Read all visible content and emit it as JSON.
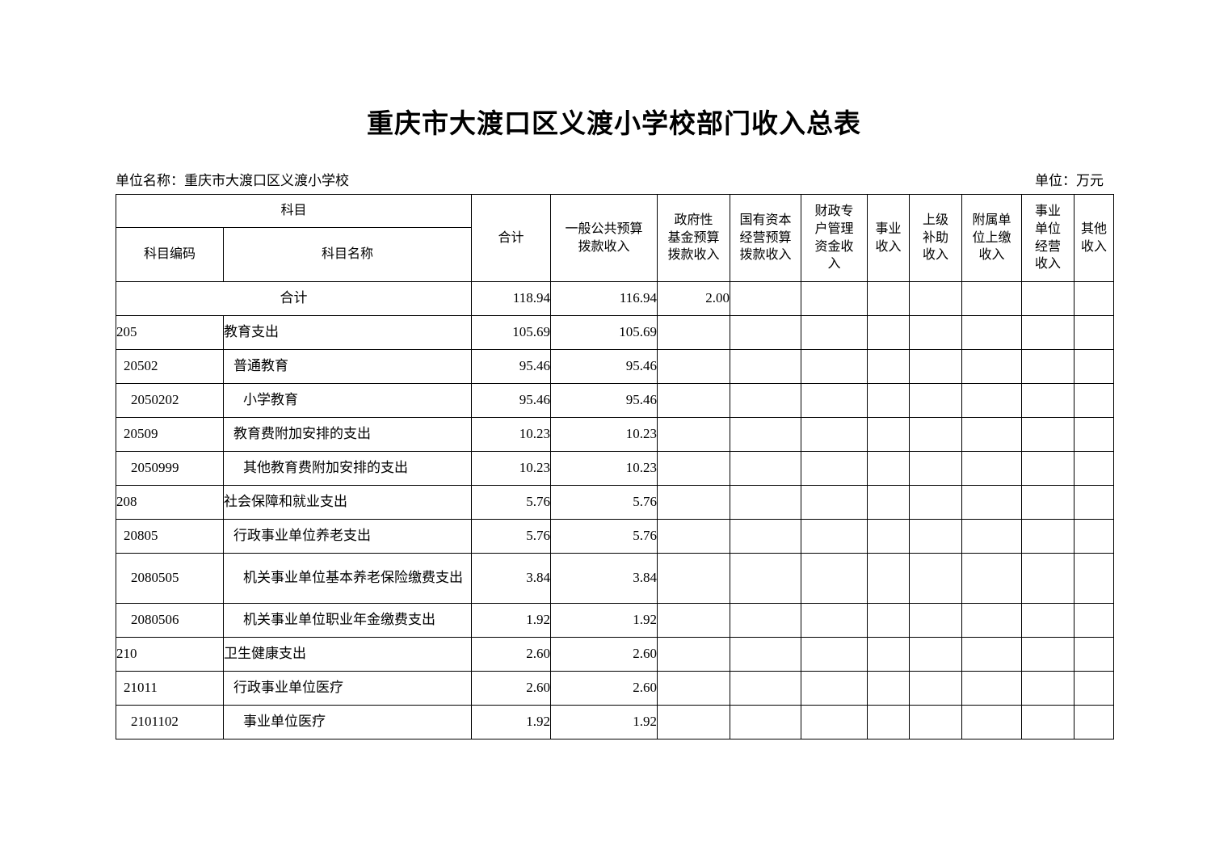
{
  "page": {
    "title": "重庆市大渡口区义渡小学校部门收入总表",
    "unit_name": "单位名称：重庆市大渡口区义渡小学校",
    "unit_measure": "单位：万元"
  },
  "colors": {
    "background": "#ffffff",
    "text": "#000000",
    "border": "#000000"
  },
  "table": {
    "header": {
      "subject": "科目",
      "subject_code": "科目编码",
      "subject_name": "科目名称",
      "columns": [
        "合计",
        "一般公共预算\n拨款收入",
        "政府性\n基金预算\n拨款收入",
        "国有资本\n经营预算\n拨款收入",
        "财政专\n户管理\n资金收\n入",
        "事业\n收入",
        "上级\n补助\n收入",
        "附属单\n位上缴\n收入",
        "事业\n单位\n经营\n收入",
        "其他\n收入"
      ]
    },
    "rows": [
      {
        "code": "",
        "name": "合计",
        "merged": true,
        "indent": 0,
        "tall": false,
        "values": [
          "118.94",
          "116.94",
          "2.00",
          "",
          "",
          "",
          "",
          "",
          "",
          ""
        ]
      },
      {
        "code": "205",
        "name": "教育支出",
        "merged": false,
        "indent": 0,
        "tall": false,
        "values": [
          "105.69",
          "105.69",
          "",
          "",
          "",
          "",
          "",
          "",
          "",
          ""
        ]
      },
      {
        "code": "20502",
        "name": "普通教育",
        "merged": false,
        "indent": 1,
        "tall": false,
        "values": [
          "95.46",
          "95.46",
          "",
          "",
          "",
          "",
          "",
          "",
          "",
          ""
        ]
      },
      {
        "code": "2050202",
        "name": "小学教育",
        "merged": false,
        "indent": 2,
        "tall": false,
        "values": [
          "95.46",
          "95.46",
          "",
          "",
          "",
          "",
          "",
          "",
          "",
          ""
        ]
      },
      {
        "code": "20509",
        "name": "教育费附加安排的支出",
        "merged": false,
        "indent": 1,
        "tall": false,
        "values": [
          "10.23",
          "10.23",
          "",
          "",
          "",
          "",
          "",
          "",
          "",
          ""
        ]
      },
      {
        "code": "2050999",
        "name": "其他教育费附加安排的支出",
        "merged": false,
        "indent": 2,
        "tall": false,
        "values": [
          "10.23",
          "10.23",
          "",
          "",
          "",
          "",
          "",
          "",
          "",
          ""
        ]
      },
      {
        "code": "208",
        "name": "社会保障和就业支出",
        "merged": false,
        "indent": 0,
        "tall": false,
        "values": [
          "5.76",
          "5.76",
          "",
          "",
          "",
          "",
          "",
          "",
          "",
          ""
        ]
      },
      {
        "code": "20805",
        "name": "行政事业单位养老支出",
        "merged": false,
        "indent": 1,
        "tall": false,
        "values": [
          "5.76",
          "5.76",
          "",
          "",
          "",
          "",
          "",
          "",
          "",
          ""
        ]
      },
      {
        "code": "2080505",
        "name": "机关事业单位基本养老保险缴费支出",
        "merged": false,
        "indent": 2,
        "tall": true,
        "values": [
          "3.84",
          "3.84",
          "",
          "",
          "",
          "",
          "",
          "",
          "",
          ""
        ]
      },
      {
        "code": "2080506",
        "name": "机关事业单位职业年金缴费支出",
        "merged": false,
        "indent": 2,
        "tall": false,
        "values": [
          "1.92",
          "1.92",
          "",
          "",
          "",
          "",
          "",
          "",
          "",
          ""
        ]
      },
      {
        "code": "210",
        "name": "卫生健康支出",
        "merged": false,
        "indent": 0,
        "tall": false,
        "values": [
          "2.60",
          "2.60",
          "",
          "",
          "",
          "",
          "",
          "",
          "",
          ""
        ]
      },
      {
        "code": "21011",
        "name": "行政事业单位医疗",
        "merged": false,
        "indent": 1,
        "tall": false,
        "values": [
          "2.60",
          "2.60",
          "",
          "",
          "",
          "",
          "",
          "",
          "",
          ""
        ]
      },
      {
        "code": "2101102",
        "name": "事业单位医疗",
        "merged": false,
        "indent": 2,
        "tall": false,
        "values": [
          "1.92",
          "1.92",
          "",
          "",
          "",
          "",
          "",
          "",
          "",
          ""
        ]
      }
    ]
  }
}
